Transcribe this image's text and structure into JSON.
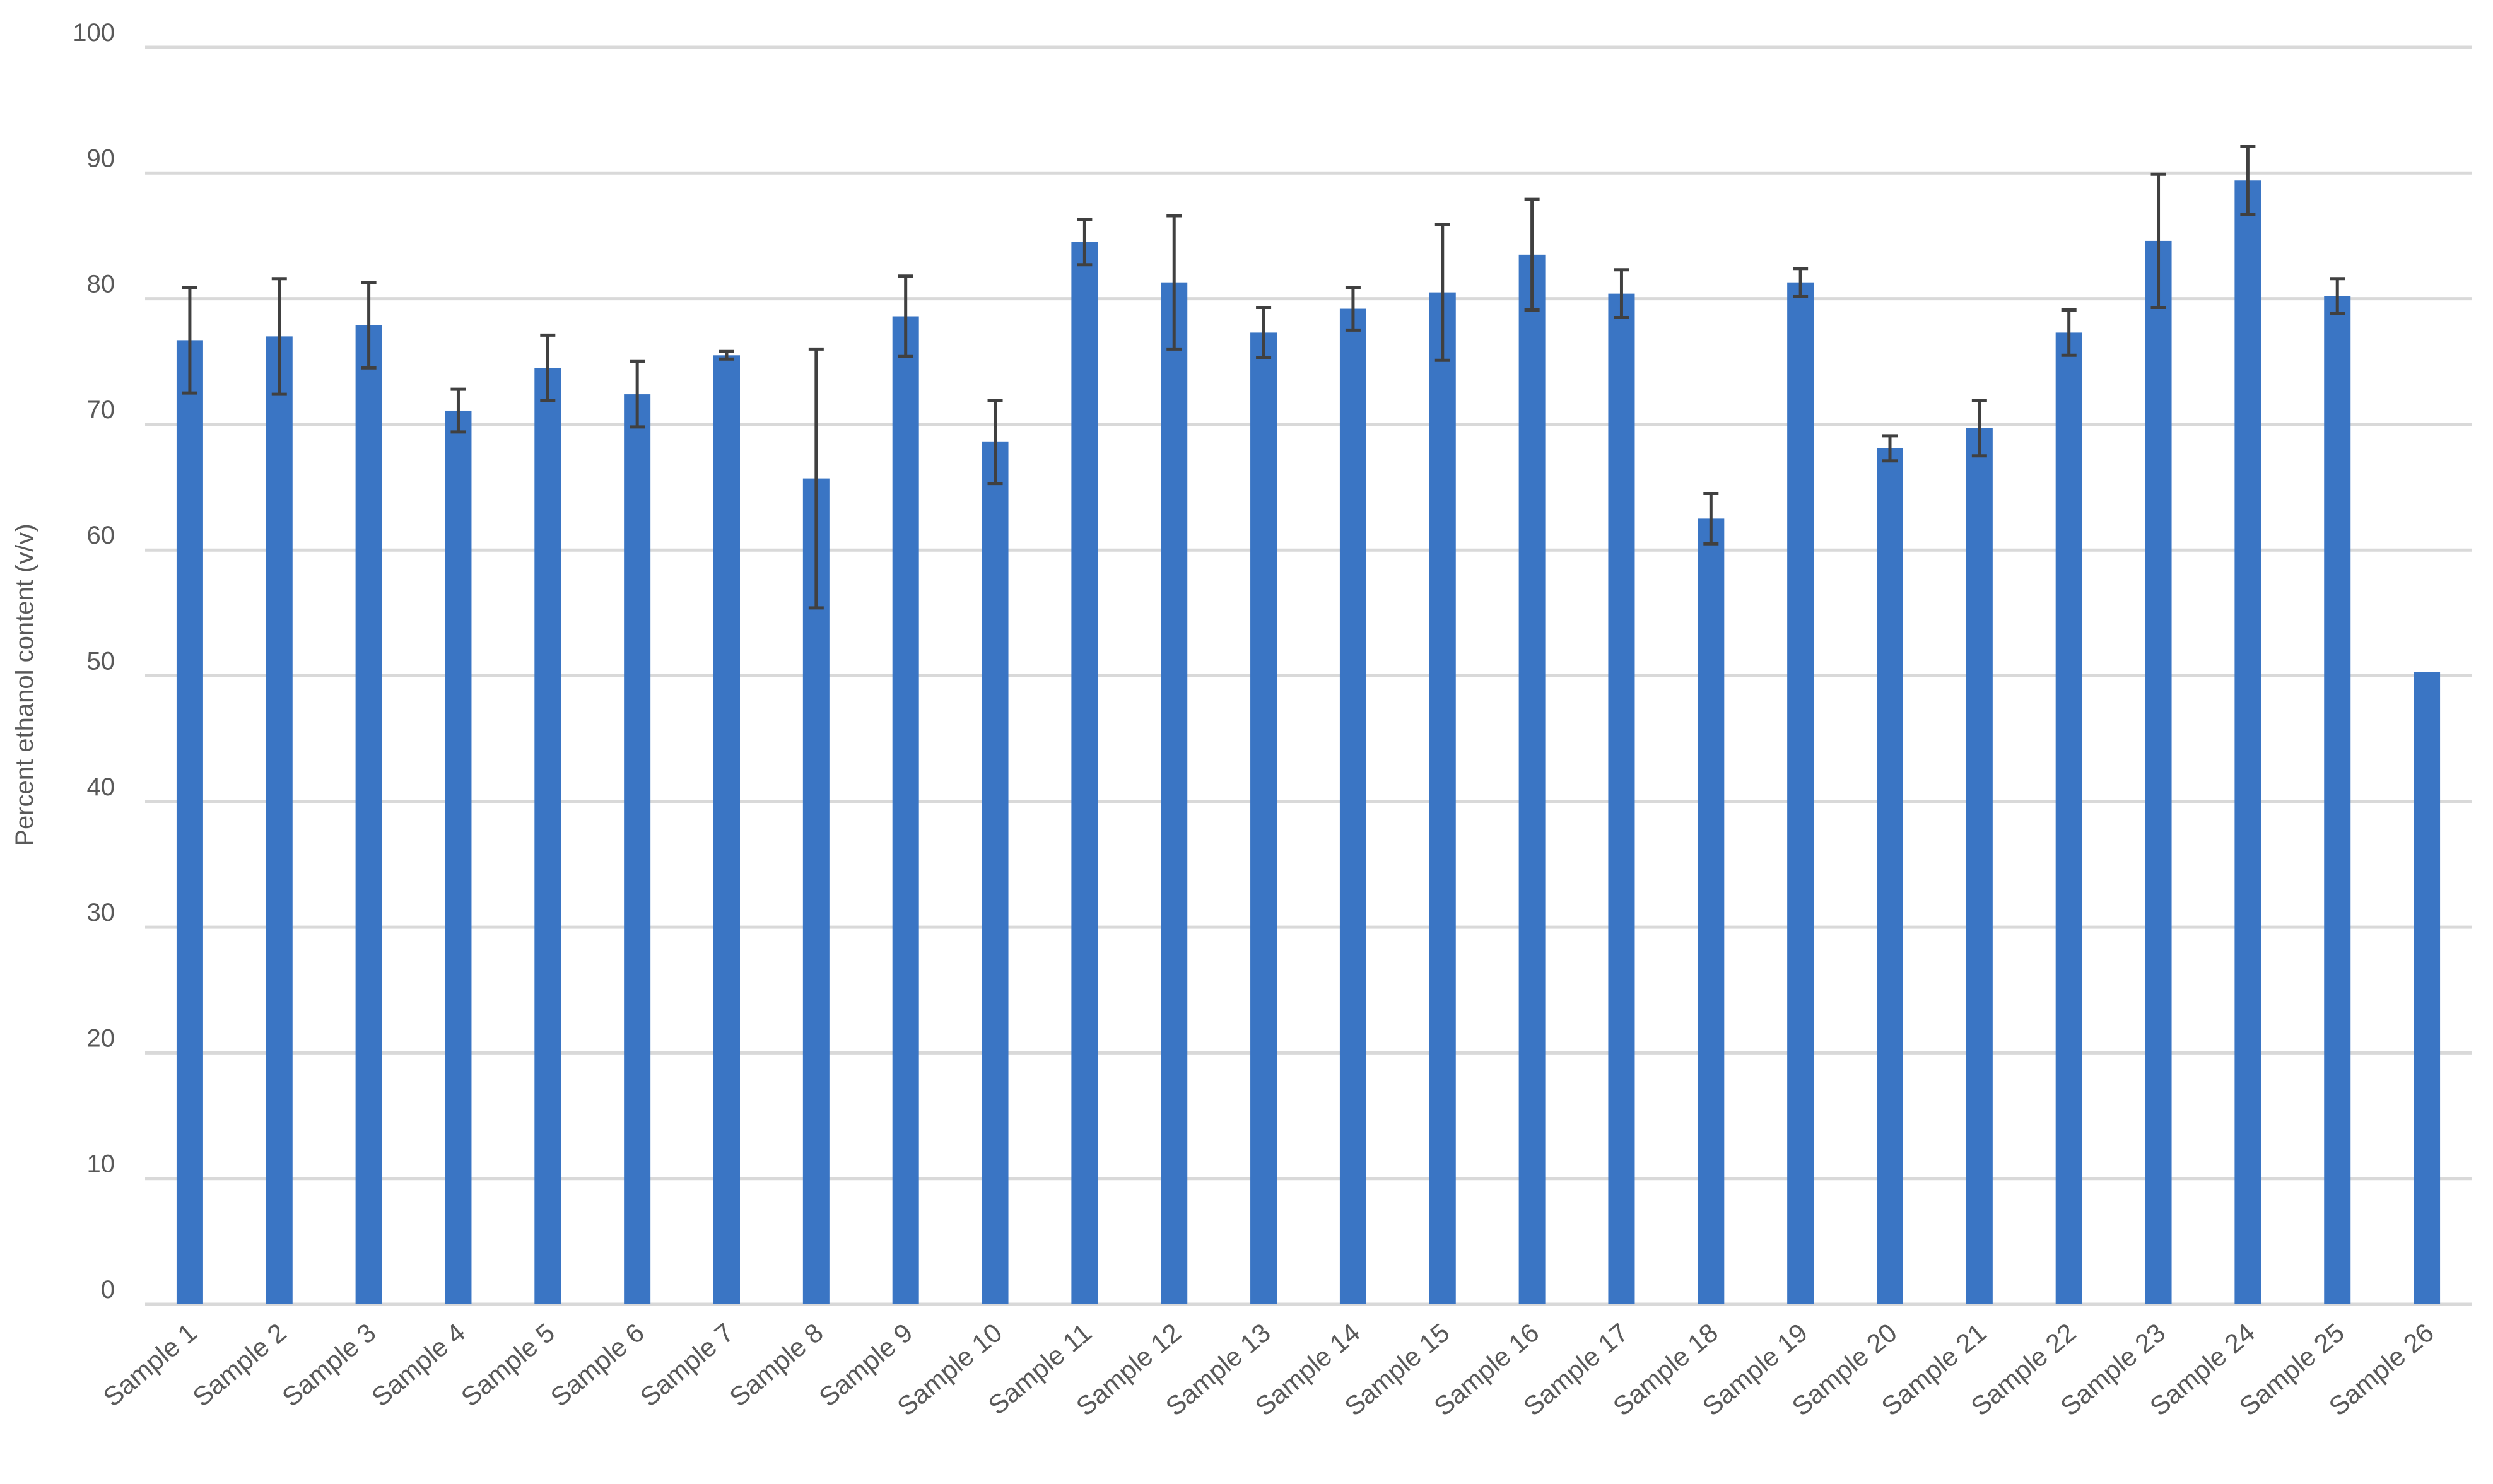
{
  "chart_data": {
    "type": "bar",
    "title": "",
    "xlabel": "",
    "ylabel": "Percent ethanol content (v/v)",
    "ylim": [
      0,
      100
    ],
    "yticks": [
      0,
      10,
      20,
      30,
      40,
      50,
      60,
      70,
      80,
      90,
      100
    ],
    "grid": true,
    "legend": "none",
    "bar_color": "#3a75c4",
    "error_color": "#404040",
    "categories": [
      "Sample 1",
      "Sample 2",
      "Sample 3",
      "Sample 4",
      "Sample 5",
      "Sample 6",
      "Sample 7",
      "Sample 8",
      "Sample 9",
      "Sample 10",
      "Sample 11",
      "Sample 12",
      "Sample 13",
      "Sample 14",
      "Sample 15",
      "Sample 16",
      "Sample 17",
      "Sample 18",
      "Sample 19",
      "Sample 20",
      "Sample 21",
      "Sample 22",
      "Sample 23",
      "Sample 24",
      "Sample 25",
      "Sample 26"
    ],
    "values": [
      76.7,
      77.0,
      77.9,
      71.1,
      74.5,
      72.4,
      75.5,
      65.7,
      78.6,
      68.6,
      84.5,
      81.3,
      77.3,
      79.2,
      80.5,
      83.5,
      80.4,
      62.5,
      81.3,
      68.1,
      69.7,
      77.3,
      84.6,
      89.4,
      80.2,
      50.3
    ],
    "error": [
      4.2,
      4.6,
      3.4,
      1.7,
      2.6,
      2.6,
      0.3,
      10.3,
      3.2,
      3.3,
      1.8,
      5.3,
      2.0,
      1.7,
      5.4,
      4.4,
      1.9,
      2.0,
      1.1,
      1.0,
      2.2,
      1.8,
      5.3,
      2.7,
      1.4,
      0
    ]
  }
}
